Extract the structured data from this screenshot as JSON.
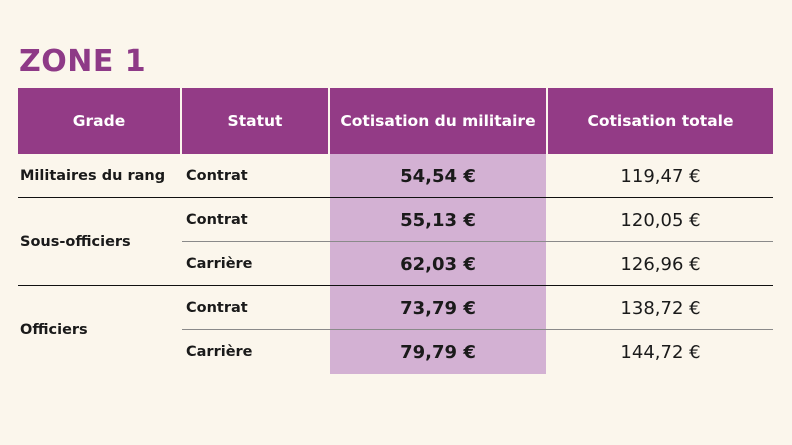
{
  "title": "ZONE 1",
  "table": {
    "headers": [
      "Grade",
      "Statut",
      "Cotisation du militaire",
      "Cotisation totale"
    ],
    "groups": [
      {
        "grade": "Militaires du rang",
        "rows": [
          {
            "statut": "Contrat",
            "militaire": "54,54 €",
            "totale": "119,47 €"
          }
        ]
      },
      {
        "grade": "Sous-officiers",
        "rows": [
          {
            "statut": "Contrat",
            "militaire": "55,13 €",
            "totale": "120,05 €"
          },
          {
            "statut": "Carrière",
            "militaire": "62,03 €",
            "totale": "126,96 €"
          }
        ]
      },
      {
        "grade": "Officiers",
        "rows": [
          {
            "statut": "Contrat",
            "militaire": "73,79 €",
            "totale": "138,72 €"
          },
          {
            "statut": "Carrière",
            "militaire": "79,79 €",
            "totale": "144,72 €"
          }
        ]
      }
    ]
  },
  "colors": {
    "header_bg": "#933b86",
    "highlight_bg": "#d3b1d3",
    "title": "#8e3a87",
    "page_bg": "#fbf6ec"
  }
}
